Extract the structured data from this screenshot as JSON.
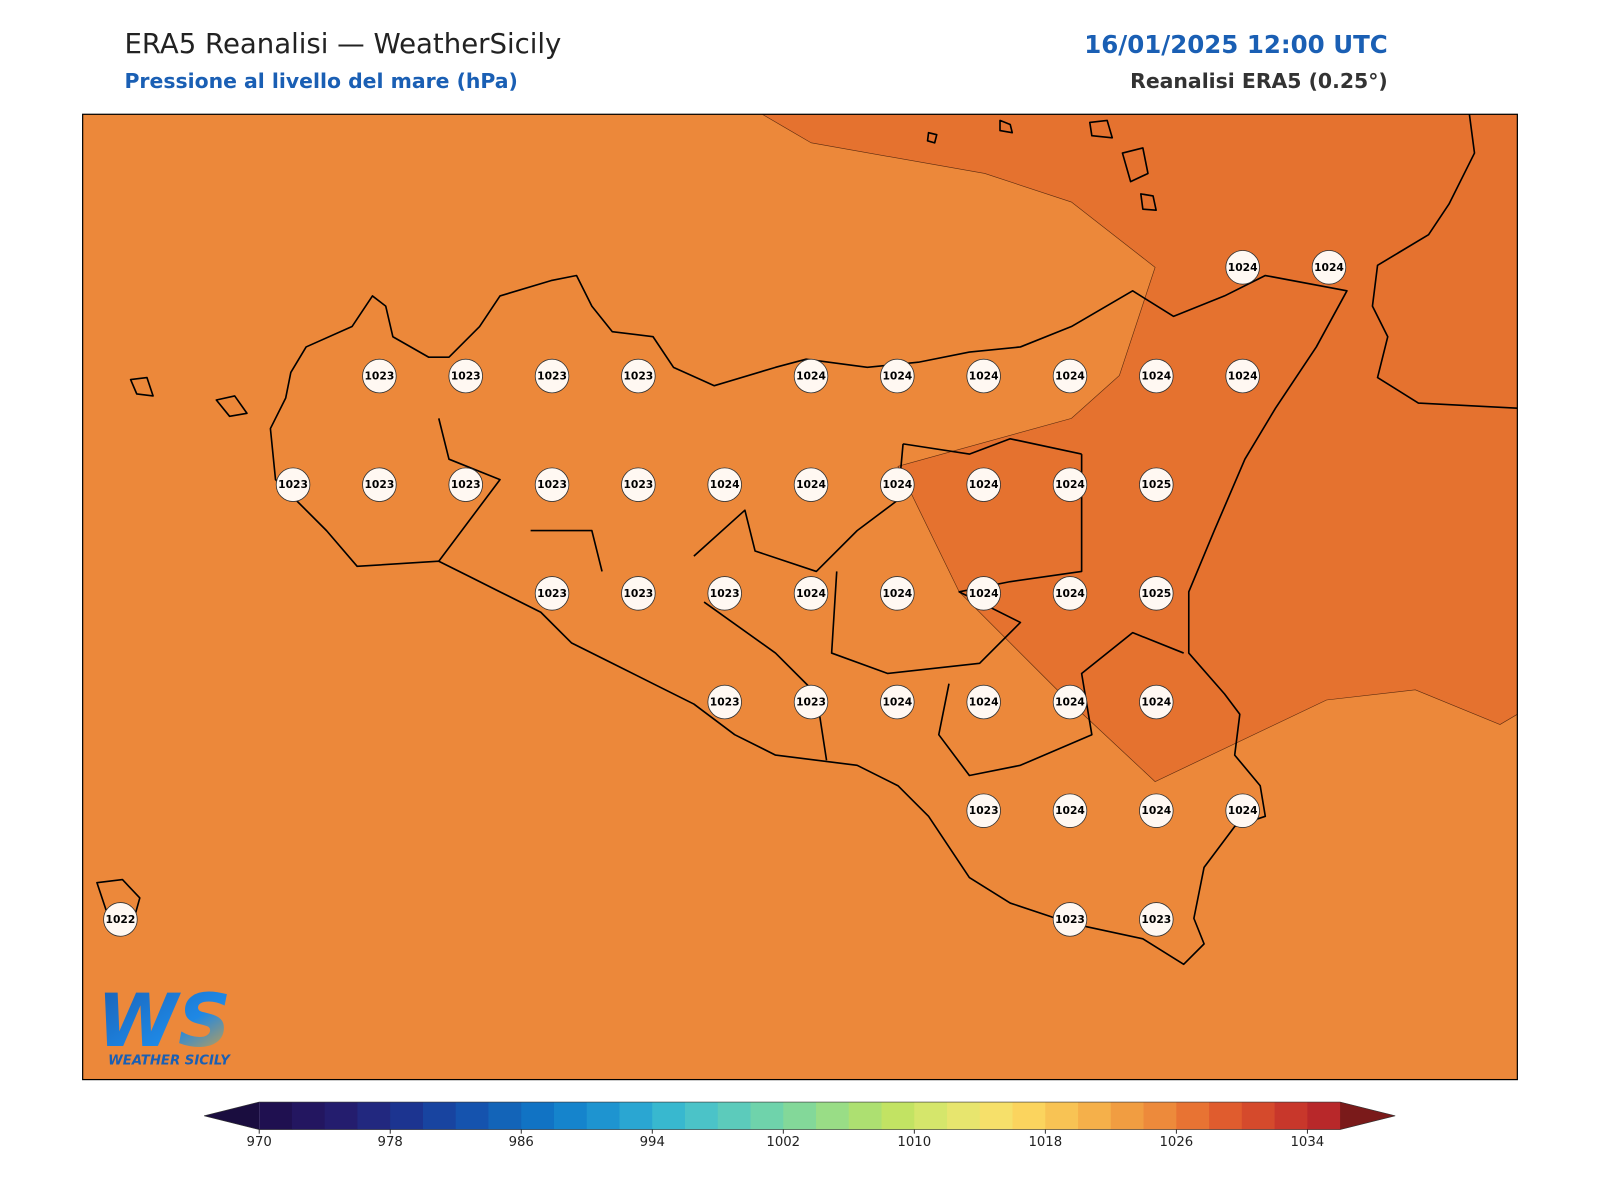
{
  "header": {
    "title": "ERA5 Reanalisi — WeatherSicily",
    "subtitle": "Pressione al livello del mare (hPa)",
    "datetime": "16/01/2025 12:00 UTC",
    "source": "Reanalisi ERA5 (0.25°)"
  },
  "stations": [
    [
      1024,
      1024
    ],
    [
      1023,
      1023,
      1023,
      1023,
      1024,
      1024,
      1024,
      1024,
      1024,
      1024
    ],
    [
      1023,
      1023,
      1023,
      1023,
      1023,
      1024,
      1024,
      1024,
      1024,
      1024,
      1025
    ],
    [
      1023,
      1023,
      1023,
      1024,
      1024,
      1024,
      1024,
      1025
    ],
    [
      1023,
      1023,
      1024,
      1024,
      1024,
      1024
    ],
    [
      1023,
      1024,
      1024,
      1024
    ],
    [
      1022,
      1023,
      1023
    ]
  ],
  "colorbar": {
    "ticks": [
      970,
      978,
      986,
      994,
      1002,
      1010,
      1018,
      1026,
      1034
    ],
    "step": 2,
    "colors": [
      "#1f1050",
      "#231660",
      "#241d6e",
      "#22287f",
      "#1c3490",
      "#1844a0",
      "#1553ae",
      "#1364b8",
      "#1173c4",
      "#1584cc",
      "#1e94d0",
      "#2aa6d2",
      "#38b8cf",
      "#4bc3c8",
      "#5ccbbb",
      "#6fd3ab",
      "#83d899",
      "#99dd86",
      "#ade071",
      "#c2e363",
      "#d5e66b",
      "#e7e56e",
      "#f6e06a",
      "#fbd45e",
      "#f8c354",
      "#f5b04a",
      "#f19d41",
      "#ed8a3b",
      "#e87333",
      "#e05c2e",
      "#d54a2c",
      "#c8372b",
      "#b8282a"
    ],
    "under": "#1a0d3f",
    "over": "#7a1a1a"
  },
  "logo": {
    "mark": "WS",
    "name": "WEATHER SICILY"
  }
}
